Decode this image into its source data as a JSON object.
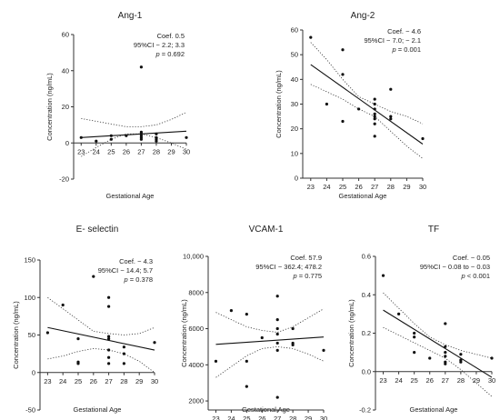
{
  "chart_data": [
    {
      "type": "scatter",
      "title": "Ang-1",
      "xlabel": "Gestational Age",
      "ylabel": "Concentration (ng/mL)",
      "xlim": [
        22.5,
        30
      ],
      "ylim": [
        -20,
        60
      ],
      "xticks": [
        "23",
        "24",
        "25",
        "26",
        "27",
        "28",
        "29",
        "30"
      ],
      "yticks": [
        "-20",
        "0",
        "20",
        "40",
        "60"
      ],
      "points": [
        [
          23,
          3
        ],
        [
          24,
          1
        ],
        [
          25,
          2
        ],
        [
          25,
          4
        ],
        [
          26,
          4
        ],
        [
          27,
          42
        ],
        [
          27,
          6
        ],
        [
          27,
          5
        ],
        [
          27,
          4
        ],
        [
          27,
          3
        ],
        [
          27,
          2
        ],
        [
          28,
          5
        ],
        [
          28,
          3
        ],
        [
          28,
          2
        ],
        [
          28,
          1
        ],
        [
          30,
          3
        ]
      ],
      "fit": {
        "intercept": -8.5,
        "slope": 0.5
      },
      "ci_band": {
        "x": [
          23,
          24,
          25,
          26,
          27,
          28,
          29,
          30
        ],
        "upper": [
          13.5,
          12,
          10.5,
          9,
          9,
          10,
          13,
          17
        ],
        "lower": [
          -7.5,
          -2.5,
          2,
          5,
          5,
          3,
          0,
          -3.5
        ]
      },
      "stats": {
        "coef": "Coef. 0.5",
        "ci": "95%CI − 2.2; 3.3",
        "p_label": "p",
        "p_value": "= 0.692"
      }
    },
    {
      "type": "scatter",
      "title": "Ang-2",
      "xlabel": "Gestational Age",
      "ylabel": "Concentration (ng/mL)",
      "xlim": [
        22.5,
        30
      ],
      "ylim": [
        0,
        60
      ],
      "xticks": [
        "23",
        "24",
        "25",
        "26",
        "27",
        "28",
        "29",
        "30"
      ],
      "yticks": [
        "0",
        "10",
        "20",
        "30",
        "40",
        "50",
        "60"
      ],
      "points": [
        [
          23,
          57
        ],
        [
          24,
          30
        ],
        [
          25,
          52
        ],
        [
          25,
          42
        ],
        [
          25,
          23
        ],
        [
          26,
          28
        ],
        [
          27,
          32
        ],
        [
          27,
          30
        ],
        [
          27,
          28
        ],
        [
          27,
          26
        ],
        [
          27,
          25
        ],
        [
          27,
          24
        ],
        [
          27,
          22
        ],
        [
          27,
          17
        ],
        [
          28,
          36
        ],
        [
          28,
          25
        ],
        [
          28,
          24
        ],
        [
          30,
          16
        ]
      ],
      "fit": {
        "intercept": 151.8,
        "slope": -4.6
      },
      "ci_band": {
        "x": [
          23,
          24,
          25,
          26,
          27,
          28,
          29,
          30
        ],
        "upper": [
          55,
          48,
          40,
          33,
          30,
          27,
          25,
          22
        ],
        "lower": [
          38,
          35,
          32,
          28,
          25,
          19,
          13,
          8
        ]
      },
      "stats": {
        "coef": "Coef. − 4.6",
        "ci": "95%CI − 7.0; − 2.1",
        "p_label": "p",
        "p_value": "= 0.001"
      }
    },
    {
      "type": "scatter",
      "title": "E- selectin",
      "xlabel": "Gestational Age",
      "ylabel": "Concentration (ng/mL)",
      "xlim": [
        22.5,
        30
      ],
      "ylim": [
        -50,
        150
      ],
      "xticks": [
        "23",
        "24",
        "25",
        "26",
        "27",
        "28",
        "29",
        "30"
      ],
      "yticks": [
        "-50",
        "0",
        "50",
        "100",
        "150"
      ],
      "points": [
        [
          23,
          53
        ],
        [
          24,
          90
        ],
        [
          25,
          45
        ],
        [
          25,
          14
        ],
        [
          25,
          12
        ],
        [
          26,
          128
        ],
        [
          27,
          100
        ],
        [
          27,
          88
        ],
        [
          27,
          48
        ],
        [
          27,
          45
        ],
        [
          27,
          30
        ],
        [
          27,
          20
        ],
        [
          27,
          12
        ],
        [
          28,
          34
        ],
        [
          28,
          25
        ],
        [
          28,
          12
        ],
        [
          30,
          40
        ]
      ],
      "fit": {
        "intercept": 158.9,
        "slope": -4.3
      },
      "ci_band": {
        "x": [
          23,
          24,
          25,
          26,
          27,
          28,
          29,
          30
        ],
        "upper": [
          100,
          85,
          70,
          55,
          52,
          50,
          52,
          60
        ],
        "lower": [
          18,
          22,
          28,
          32,
          30,
          25,
          15,
          0
        ]
      },
      "stats": {
        "coef": "Coef. − 4.3",
        "ci": "95%CI − 14.4; 5.7",
        "p_label": "p",
        "p_value": "= 0.378"
      }
    },
    {
      "type": "scatter",
      "title": "VCAM-1",
      "xlabel": "Gestational Age",
      "ylabel": "Concentration (ng/mL)",
      "xlim": [
        22.5,
        30
      ],
      "ylim": [
        1500,
        10000
      ],
      "xticks": [
        "23",
        "24",
        "25",
        "26",
        "27",
        "28",
        "29",
        "30"
      ],
      "yticks": [
        "2000",
        "4000",
        "6000",
        "8000",
        "10,000"
      ],
      "yformat": "comma_over_9999",
      "points": [
        [
          23,
          4200
        ],
        [
          24,
          7000
        ],
        [
          25,
          6800
        ],
        [
          25,
          4200
        ],
        [
          25,
          2800
        ],
        [
          26,
          5500
        ],
        [
          27,
          7800
        ],
        [
          27,
          6500
        ],
        [
          27,
          6000
        ],
        [
          27,
          5700
        ],
        [
          27,
          5200
        ],
        [
          27,
          4800
        ],
        [
          27,
          2200
        ],
        [
          28,
          6000
        ],
        [
          28,
          5200
        ],
        [
          28,
          5100
        ],
        [
          30,
          4800
        ]
      ],
      "fit": {
        "intercept": 3800,
        "slope": 57.9
      },
      "ci_band": {
        "x": [
          23,
          24,
          25,
          26,
          27,
          28,
          29,
          30
        ],
        "upper": [
          6900,
          6500,
          6100,
          5900,
          5800,
          6100,
          6600,
          7100
        ],
        "lower": [
          3300,
          3900,
          4500,
          4900,
          5000,
          4900,
          4600,
          4200
        ]
      },
      "stats": {
        "coef": "Coef. 57.9",
        "ci": "95%CI − 362.4; 478.2",
        "p_label": "p",
        "p_value": "= 0.775"
      }
    },
    {
      "type": "scatter",
      "title": "TF",
      "xlabel": "Gestational Age",
      "ylabel": "Concentration (ng/mL)",
      "xlim": [
        22.5,
        30
      ],
      "ylim": [
        -0.2,
        0.6
      ],
      "xticks": [
        "23",
        "24",
        "25",
        "26",
        "27",
        "28",
        "29",
        "30"
      ],
      "yticks": [
        "-0.2",
        "0.0",
        "0.2",
        "0.4",
        "0.6"
      ],
      "points": [
        [
          23,
          0.5
        ],
        [
          24,
          0.3
        ],
        [
          25,
          0.2
        ],
        [
          25,
          0.18
        ],
        [
          25,
          0.1
        ],
        [
          26,
          0.07
        ],
        [
          27,
          0.25
        ],
        [
          27,
          0.13
        ],
        [
          27,
          0.1
        ],
        [
          27,
          0.08
        ],
        [
          27,
          0.05
        ],
        [
          27,
          0.04
        ],
        [
          28,
          0.09
        ],
        [
          28,
          0.06
        ],
        [
          28,
          0.05
        ],
        [
          30,
          0.07
        ]
      ],
      "fit": {
        "intercept": 1.47,
        "slope": -0.05
      },
      "ci_band": {
        "x": [
          23,
          24,
          25,
          26,
          27,
          28,
          29,
          30
        ],
        "upper": [
          0.41,
          0.33,
          0.25,
          0.18,
          0.14,
          0.11,
          0.09,
          0.07
        ],
        "lower": [
          0.23,
          0.19,
          0.15,
          0.11,
          0.07,
          0.01,
          -0.06,
          -0.13
        ]
      },
      "stats": {
        "coef": "Coef. − 0.05",
        "ci": "95%CI − 0.08 to − 0.03",
        "p_label": "p",
        "p_value": "< 0.001"
      }
    }
  ]
}
